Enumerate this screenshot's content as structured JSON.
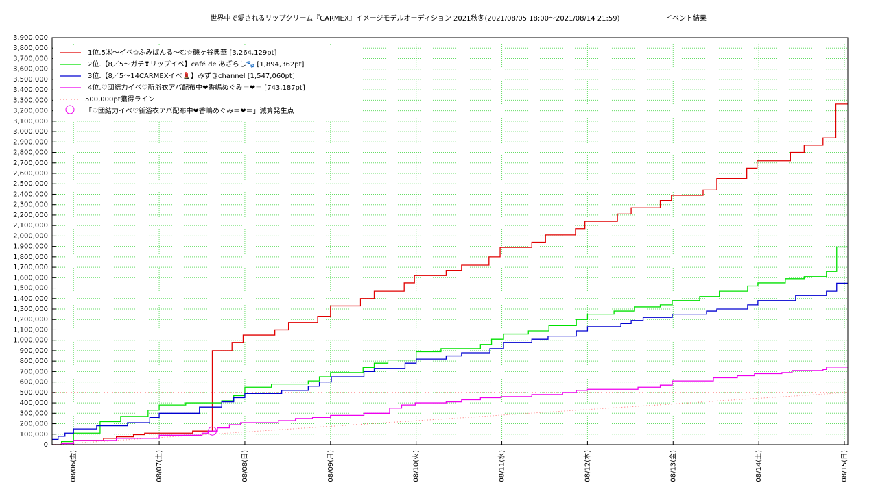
{
  "chart_data": {
    "type": "step-line",
    "title": "世界中で愛されるリップクリーム『CARMEX』イメージモデルオーディション 2021秋冬(2021/08/05 18:00〜2021/08/14 21:59)",
    "subtitle": "イベント結果",
    "grid": true,
    "grid_color": "#66dd66",
    "legend_position": "upper left",
    "xlim": [
      5.75,
      15.04
    ],
    "xticks": [
      {
        "value": 6,
        "label": "08/06(金)"
      },
      {
        "value": 7,
        "label": "08/07(土)"
      },
      {
        "value": 8,
        "label": "08/08(日)"
      },
      {
        "value": 9,
        "label": "08/09(月)"
      },
      {
        "value": 10,
        "label": "08/10(火)"
      },
      {
        "value": 11,
        "label": "08/11(水)"
      },
      {
        "value": 12,
        "label": "08/12(木)"
      },
      {
        "value": 13,
        "label": "08/13(金)"
      },
      {
        "value": 14,
        "label": "08/14(土)"
      },
      {
        "value": 15,
        "label": "08/15(日)"
      }
    ],
    "ylim": [
      0,
      3900000
    ],
    "yticks": [
      0,
      {
        "value": 100000,
        "label": "100,000"
      },
      {
        "value": 200000,
        "label": "200,000"
      },
      {
        "value": 300000,
        "label": "300,000"
      },
      {
        "value": 400000,
        "label": "400,000"
      },
      {
        "value": 500000,
        "label": "500,000"
      },
      {
        "value": 600000,
        "label": "600,000"
      },
      {
        "value": 700000,
        "label": "700,000"
      },
      {
        "value": 800000,
        "label": "800,000"
      },
      {
        "value": 900000,
        "label": "900,000"
      },
      {
        "value": 1000000,
        "label": "1,000,000"
      },
      {
        "value": 1100000,
        "label": "1,100,000"
      },
      {
        "value": 1200000,
        "label": "1,200,000"
      },
      {
        "value": 1300000,
        "label": "1,300,000"
      },
      {
        "value": 1400000,
        "label": "1,400,000"
      },
      {
        "value": 1500000,
        "label": "1,500,000"
      },
      {
        "value": 1600000,
        "label": "1,600,000"
      },
      {
        "value": 1700000,
        "label": "1,700,000"
      },
      {
        "value": 1800000,
        "label": "1,800,000"
      },
      {
        "value": 1900000,
        "label": "1,900,000"
      },
      {
        "value": 2000000,
        "label": "2,000,000"
      },
      {
        "value": 2100000,
        "label": "2,100,000"
      },
      {
        "value": 2200000,
        "label": "2,200,000"
      },
      {
        "value": 2300000,
        "label": "2,300,000"
      },
      {
        "value": 2400000,
        "label": "2,400,000"
      },
      {
        "value": 2500000,
        "label": "2,500,000"
      },
      {
        "value": 2600000,
        "label": "2,600,000"
      },
      {
        "value": 2700000,
        "label": "2,700,000"
      },
      {
        "value": 2800000,
        "label": "2,800,000"
      },
      {
        "value": 2900000,
        "label": "2,900,000"
      },
      {
        "value": 3000000,
        "label": "3,000,000"
      },
      {
        "value": 3100000,
        "label": "3,100,000"
      },
      {
        "value": 3200000,
        "label": "3,200,000"
      },
      {
        "value": 3300000,
        "label": "3,300,000"
      },
      {
        "value": 3400000,
        "label": "3,400,000"
      },
      {
        "value": 3500000,
        "label": "3,500,000"
      },
      {
        "value": 3600000,
        "label": "3,600,000"
      },
      {
        "value": 3700000,
        "label": "3,700,000"
      },
      {
        "value": 3800000,
        "label": "3,800,000"
      },
      {
        "value": 3900000,
        "label": "3,900,000"
      }
    ],
    "series": [
      {
        "name": "1位.5㈭〜イベ✩ふみぱんる〜む☆磯ヶ谷典華 [3,264,129pt]",
        "color": "#e00000",
        "x": [
          5.75,
          5.86,
          6.0,
          6.35,
          6.5,
          6.7,
          6.83,
          7.39,
          7.62,
          7.85,
          7.98,
          8.35,
          8.51,
          8.85,
          9.0,
          9.35,
          9.51,
          9.86,
          9.98,
          10.35,
          10.53,
          10.85,
          10.98,
          11.35,
          11.51,
          11.86,
          11.97,
          12.35,
          12.51,
          12.85,
          12.98,
          13.35,
          13.51,
          13.86,
          13.98,
          14.37,
          14.53,
          14.75,
          14.9
        ],
        "values": [
          0,
          30000,
          40000,
          60000,
          75000,
          95000,
          110000,
          130000,
          900000,
          980000,
          1050000,
          1100000,
          1170000,
          1230000,
          1330000,
          1400000,
          1470000,
          1550000,
          1620000,
          1670000,
          1720000,
          1800000,
          1890000,
          1940000,
          2010000,
          2070000,
          2140000,
          2210000,
          2270000,
          2340000,
          2390000,
          2440000,
          2550000,
          2650000,
          2720000,
          2800000,
          2870000,
          2940000,
          3264129
        ]
      },
      {
        "name": "2位.【8／5〜ガチ❣リップイベ】café de あざらし🐾 [1,894,362pt]",
        "color": "#00e000",
        "x": [
          5.75,
          5.86,
          6.0,
          6.31,
          6.55,
          6.87,
          7.0,
          7.31,
          7.73,
          7.87,
          8.0,
          8.31,
          8.74,
          8.87,
          9.0,
          9.38,
          9.51,
          9.67,
          10.0,
          10.29,
          10.75,
          10.88,
          11.02,
          11.31,
          11.55,
          11.87,
          12.0,
          12.31,
          12.55,
          12.85,
          12.99,
          13.31,
          13.54,
          13.87,
          13.99,
          14.31,
          14.53,
          14.79,
          14.91
        ],
        "values": [
          0,
          30000,
          110000,
          220000,
          270000,
          330000,
          380000,
          400000,
          420000,
          470000,
          550000,
          580000,
          610000,
          650000,
          690000,
          740000,
          780000,
          810000,
          890000,
          920000,
          960000,
          1010000,
          1060000,
          1090000,
          1140000,
          1200000,
          1250000,
          1280000,
          1320000,
          1340000,
          1380000,
          1420000,
          1470000,
          1520000,
          1550000,
          1590000,
          1610000,
          1660000,
          1894362
        ]
      },
      {
        "name": "3位.【8／5〜14CARMEXイベ💄】みずきchannel [1,547,060pt]",
        "color": "#0000d0",
        "x": [
          5.75,
          5.82,
          5.9,
          6.0,
          6.27,
          6.63,
          6.89,
          7.0,
          7.47,
          7.73,
          7.87,
          8.0,
          8.43,
          8.74,
          8.87,
          9.01,
          9.39,
          9.51,
          9.87,
          10.0,
          10.35,
          10.53,
          10.86,
          11.02,
          11.35,
          11.54,
          11.87,
          12.0,
          12.39,
          12.51,
          12.65,
          12.99,
          13.39,
          13.51,
          13.87,
          13.99,
          14.43,
          14.79,
          14.91
        ],
        "values": [
          50000,
          80000,
          110000,
          150000,
          180000,
          210000,
          260000,
          300000,
          360000,
          410000,
          450000,
          490000,
          520000,
          560000,
          600000,
          650000,
          700000,
          730000,
          780000,
          820000,
          850000,
          880000,
          920000,
          980000,
          1010000,
          1040000,
          1090000,
          1130000,
          1160000,
          1190000,
          1220000,
          1250000,
          1280000,
          1300000,
          1340000,
          1380000,
          1430000,
          1470000,
          1547060
        ]
      },
      {
        "name": "4位.♡団結力イベ♡新浴衣アバ配布中❤香嶋めぐみ＝❤＝ [743,187pt]",
        "color": "#ee00ee",
        "x": [
          5.75,
          5.86,
          6.0,
          6.5,
          7.0,
          7.5,
          7.57,
          7.68,
          7.82,
          7.95,
          8.39,
          8.59,
          8.79,
          9.0,
          9.39,
          9.69,
          9.83,
          9.99,
          10.35,
          10.53,
          10.75,
          10.99,
          11.35,
          11.71,
          11.87,
          12.0,
          12.59,
          12.85,
          12.99,
          13.47,
          13.75,
          13.95,
          14.27,
          14.39,
          14.75,
          14.79
        ],
        "values": [
          0,
          10000,
          40000,
          60000,
          90000,
          110000,
          130000,
          160000,
          190000,
          210000,
          230000,
          250000,
          260000,
          280000,
          300000,
          350000,
          380000,
          400000,
          410000,
          430000,
          450000,
          460000,
          480000,
          500000,
          520000,
          530000,
          550000,
          570000,
          610000,
          640000,
          660000,
          680000,
          690000,
          710000,
          720000,
          743187
        ]
      }
    ],
    "reference_line": {
      "name": "500,000pt獲得ライン",
      "color": "#ff7070",
      "value": 500000,
      "x": [
        5.75,
        15.04
      ],
      "values": [
        0,
        500000
      ]
    },
    "marker": {
      "name": "「♡団結力イベ♡新浴衣アバ配布中❤香嶋めぐみ＝❤＝」減算発生点",
      "color": "#ee00ee",
      "x": 7.62,
      "value": 130000
    }
  }
}
